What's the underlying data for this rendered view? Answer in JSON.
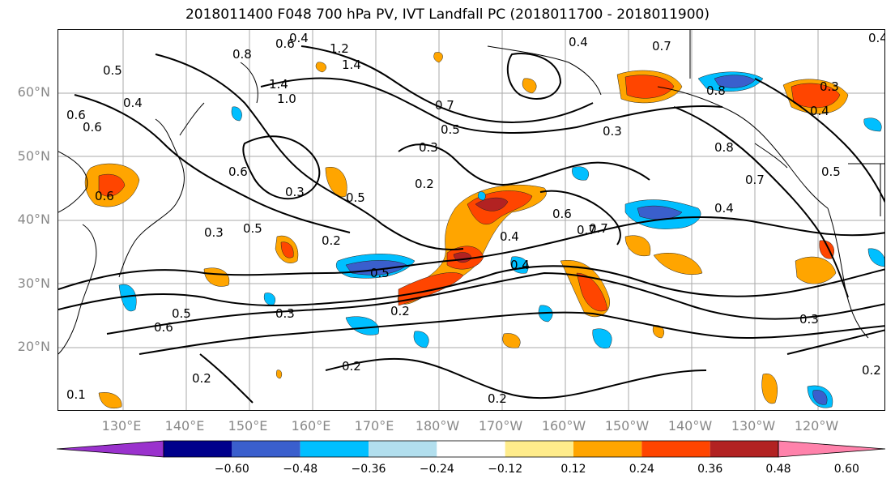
{
  "title": "2018011400 F048 700 hPa PV, IVT Landfall PC (2018011700 - 2018011900)",
  "lat_labels": [
    "60°N",
    "50°N",
    "40°N",
    "30°N",
    "20°N"
  ],
  "lon_labels": [
    "130°E",
    "140°E",
    "150°E",
    "160°E",
    "170°E",
    "180°W",
    "170°W",
    "160°W",
    "150°W",
    "140°W",
    "130°W",
    "120°W"
  ],
  "colorbar": {
    "ticks": [
      "−0.60",
      "−0.48",
      "−0.36",
      "−0.24",
      "−0.12",
      "0.12",
      "0.24",
      "0.36",
      "0.48",
      "0.60"
    ],
    "colors": [
      "#9a32cd",
      "#00008b",
      "#3a5fcd",
      "#00bfff",
      "#b2dfee",
      "#ffffff",
      "#ffec8b",
      "#ffa500",
      "#ff4500",
      "#b22222",
      "#ff82ab"
    ]
  },
  "contour_labels": [
    "0.4",
    "0.8",
    "0.6",
    "1.2",
    "1.4",
    "0.5",
    "0.4",
    "0.6",
    "1.4",
    "1.0",
    "0.7",
    "0.5",
    "0.3",
    "0.2",
    "0.6",
    "0.3",
    "0.5",
    "0.3",
    "0.6",
    "0.5",
    "0.2",
    "0.5",
    "0.4",
    "0.6",
    "0.7",
    "0.4",
    "0.4",
    "0.3",
    "0.6",
    "0.5",
    "0.2",
    "0.3",
    "0.2",
    "0.2",
    "0.2",
    "0.7",
    "0.4",
    "0.3",
    "0.8",
    "0.7",
    "0.8",
    "0.3",
    "0.4",
    "0.5",
    "0.2",
    "0.1",
    "0.4",
    "0.7",
    "0.6"
  ]
}
